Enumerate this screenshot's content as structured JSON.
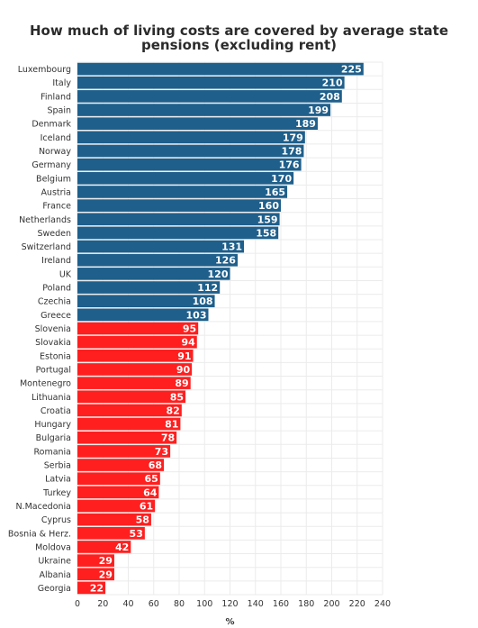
{
  "chart_data": {
    "type": "bar",
    "orientation": "horizontal",
    "title_lines": [
      "How much of living costs are covered by average state",
      "pensions (excluding rent)"
    ],
    "xlabel": "%",
    "ylabel": "",
    "xlim": [
      0,
      240
    ],
    "xticks": [
      0,
      20,
      40,
      60,
      80,
      100,
      120,
      140,
      160,
      180,
      200,
      220,
      240
    ],
    "grid": true,
    "legend": "none",
    "colors": {
      "above_100": "#1f5f8b",
      "below_100": "#ff1f1f"
    },
    "categories": [
      "Luxembourg",
      "Italy",
      "Finland",
      "Spain",
      "Denmark",
      "Iceland",
      "Norway",
      "Germany",
      "Belgium",
      "Austria",
      "France",
      "Netherlands",
      "Sweden",
      "Switzerland",
      "Ireland",
      "UK",
      "Poland",
      "Czechia",
      "Greece",
      "Slovenia",
      "Slovakia",
      "Estonia",
      "Portugal",
      "Montenegro",
      "Lithuania",
      "Croatia",
      "Hungary",
      "Bulgaria",
      "Romania",
      "Serbia",
      "Latvia",
      "Turkey",
      "N.Macedonia",
      "Cyprus",
      "Bosnia & Herz.",
      "Moldova",
      "Ukraine",
      "Albania",
      "Georgia"
    ],
    "values": [
      225,
      210,
      208,
      199,
      189,
      179,
      178,
      176,
      170,
      165,
      160,
      159,
      158,
      131,
      126,
      120,
      112,
      108,
      103,
      95,
      94,
      91,
      90,
      89,
      85,
      82,
      81,
      78,
      73,
      68,
      65,
      64,
      61,
      58,
      53,
      42,
      29,
      29,
      22
    ]
  }
}
